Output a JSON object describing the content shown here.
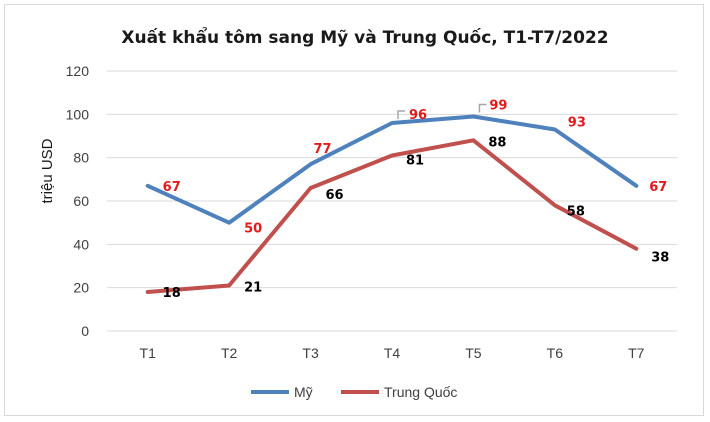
{
  "chart_data": {
    "type": "line",
    "title": "Xuất khẩu tôm sang Mỹ và Trung Quốc, T1-T7/2022",
    "ylabel": "triệu USD",
    "xlabel": "",
    "categories": [
      "T1",
      "T2",
      "T3",
      "T4",
      "T5",
      "T6",
      "T7"
    ],
    "ylim": [
      0,
      120
    ],
    "yticks": [
      0,
      20,
      40,
      60,
      80,
      100,
      120
    ],
    "grid": "horizontal",
    "legend_position": "bottom",
    "series": [
      {
        "name": "Mỹ",
        "color": "#4f81bd",
        "label_color": "#e31a1c",
        "values": [
          67,
          50,
          77,
          96,
          99,
          93,
          67
        ]
      },
      {
        "name": "Trung Quốc",
        "color": "#c0504d",
        "label_color": "#000000",
        "values": [
          18,
          21,
          66,
          81,
          88,
          58,
          38
        ]
      }
    ]
  }
}
